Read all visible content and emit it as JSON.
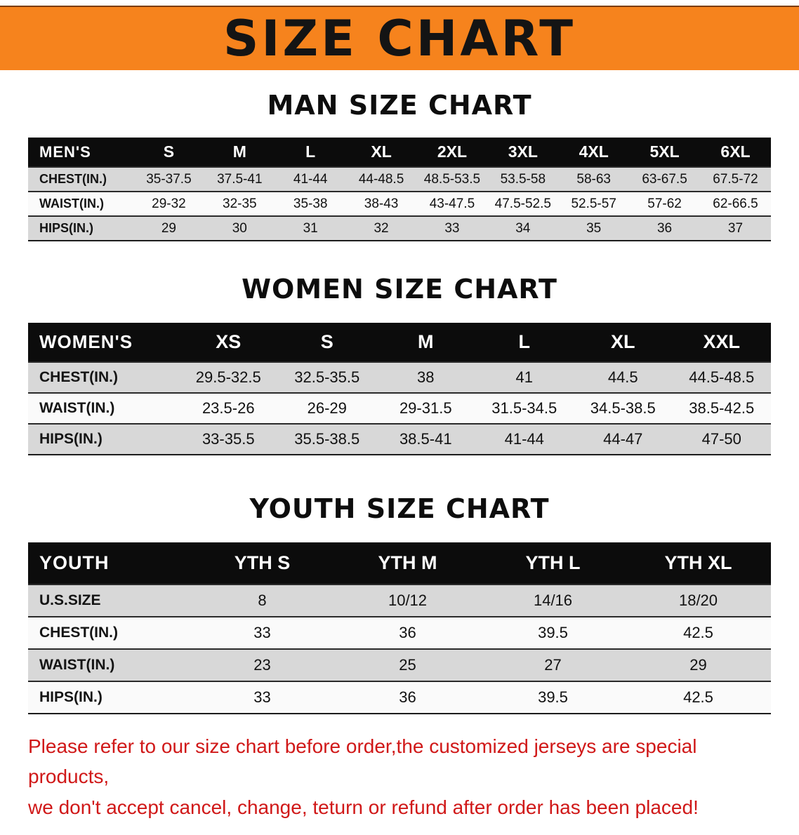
{
  "banner": {
    "title": "SIZE CHART",
    "bg_color": "#f6831d",
    "text_color": "#141414"
  },
  "sections": [
    {
      "heading": "MAN SIZE CHART",
      "table": {
        "label": "MEN'S",
        "columns": [
          "S",
          "M",
          "L",
          "XL",
          "2XL",
          "3XL",
          "4XL",
          "5XL",
          "6XL"
        ],
        "rows": [
          {
            "label": "CHEST(IN.)",
            "values": [
              "35-37.5",
              "37.5-41",
              "41-44",
              "44-48.5",
              "48.5-53.5",
              "53.5-58",
              "58-63",
              "63-67.5",
              "67.5-72"
            ]
          },
          {
            "label": "WAIST(IN.)",
            "values": [
              "29-32",
              "32-35",
              "35-38",
              "38-43",
              "43-47.5",
              "47.5-52.5",
              "52.5-57",
              "57-62",
              "62-66.5"
            ]
          },
          {
            "label": "HIPS(IN.)",
            "values": [
              "29",
              "30",
              "31",
              "32",
              "33",
              "34",
              "35",
              "36",
              "37"
            ]
          }
        ]
      }
    },
    {
      "heading": "WOMEN SIZE CHART",
      "table": {
        "label": "WOMEN'S",
        "columns": [
          "XS",
          "S",
          "M",
          "L",
          "XL",
          "XXL"
        ],
        "rows": [
          {
            "label": "CHEST(IN.)",
            "values": [
              "29.5-32.5",
              "32.5-35.5",
              "38",
              "41",
              "44.5",
              "44.5-48.5"
            ]
          },
          {
            "label": "WAIST(IN.)",
            "values": [
              "23.5-26",
              "26-29",
              "29-31.5",
              "31.5-34.5",
              "34.5-38.5",
              "38.5-42.5"
            ]
          },
          {
            "label": "HIPS(IN.)",
            "values": [
              "33-35.5",
              "35.5-38.5",
              "38.5-41",
              "41-44",
              "44-47",
              "47-50"
            ]
          }
        ]
      }
    },
    {
      "heading": "YOUTH SIZE CHART",
      "table": {
        "label": "YOUTH",
        "columns": [
          "YTH S",
          "YTH M",
          "YTH L",
          "YTH XL"
        ],
        "rows": [
          {
            "label": "U.S.SIZE",
            "values": [
              "8",
              "10/12",
              "14/16",
              "18/20"
            ]
          },
          {
            "label": "CHEST(IN.)",
            "values": [
              "33",
              "36",
              "39.5",
              "42.5"
            ]
          },
          {
            "label": "WAIST(IN.)",
            "values": [
              "23",
              "25",
              "27",
              "29"
            ]
          },
          {
            "label": "HIPS(IN.)",
            "values": [
              "33",
              "36",
              "39.5",
              "42.5"
            ]
          }
        ]
      }
    }
  ],
  "disclaimer": {
    "color": "#d01818",
    "lines": [
      "Please refer to our size chart before order,the customized jerseys are special products,",
      "we don't accept cancel, change, teturn or refund after order has been placed!"
    ]
  }
}
